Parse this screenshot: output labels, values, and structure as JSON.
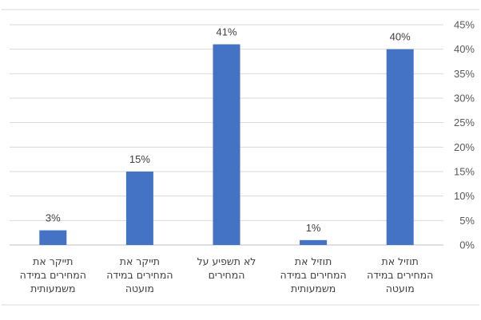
{
  "chart_data": {
    "type": "bar",
    "title": "",
    "xlabel": "",
    "ylabel": "",
    "ylim": [
      0,
      45
    ],
    "y_ticks": [
      "0%",
      "5%",
      "10%",
      "15%",
      "20%",
      "25%",
      "30%",
      "35%",
      "40%",
      "45%"
    ],
    "y_axis_side": "right",
    "grid": true,
    "legend": "none",
    "bar_color": "#4472C4",
    "categories": [
      [
        "תוזיל את",
        "המחירים במידה",
        "מועטה"
      ],
      [
        "תוזיל את",
        "המחירים במידה",
        "משמעותית"
      ],
      [
        "לא תשפיע על",
        "המחירים"
      ],
      [
        "תייקר את",
        "המחירים במידה",
        "מועטה"
      ],
      [
        "תייקר את",
        "המחירים במידה",
        "משמעותית"
      ]
    ],
    "values": [
      40,
      1,
      41,
      15,
      3
    ],
    "data_labels": [
      "40%",
      "1%",
      "41%",
      "15%",
      "3%"
    ]
  }
}
